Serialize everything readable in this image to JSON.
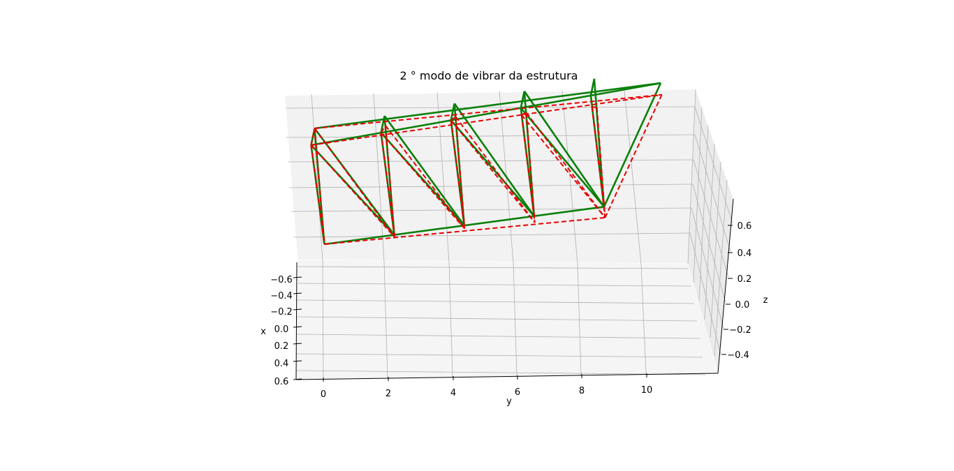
{
  "chart_data": {
    "type": "3d-line",
    "title": "2 ° modo de vibrar da estrutura",
    "xlabel": "x",
    "ylabel": "y",
    "zlabel": "z",
    "x_ticks": [
      "−0.6",
      "−0.4",
      "−0.2",
      "0.0",
      "0.2",
      "0.4",
      "0.6"
    ],
    "y_ticks": [
      "0",
      "2",
      "4",
      "6",
      "8",
      "10"
    ],
    "z_ticks": [
      "0.6",
      "0.4",
      "0.2",
      "0.0",
      "−0.2",
      "−0.4"
    ],
    "grid": true,
    "series": [
      {
        "color": "#0a800a",
        "linestyle": "solid",
        "segments": [
          [
            [
              -0.5,
              0.0,
              0.6
            ],
            [
              0.5,
              0.0,
              0.6
            ]
          ],
          [
            [
              -0.5,
              0.0,
              0.6
            ],
            [
              0.0,
              0.0,
              -0.5
            ]
          ],
          [
            [
              0.5,
              0.0,
              0.6
            ],
            [
              0.0,
              0.0,
              -0.5
            ]
          ],
          [
            [
              -0.5,
              2.2,
              0.6
            ],
            [
              0.5,
              2.2,
              0.6
            ]
          ],
          [
            [
              -0.5,
              2.2,
              0.6
            ],
            [
              0.0,
              2.2,
              -0.5
            ]
          ],
          [
            [
              0.5,
              2.2,
              0.6
            ],
            [
              0.0,
              2.2,
              -0.5
            ]
          ],
          [
            [
              -0.5,
              4.4,
              0.6
            ],
            [
              0.5,
              4.4,
              0.6
            ]
          ],
          [
            [
              -0.5,
              4.4,
              0.6
            ],
            [
              0.0,
              4.4,
              -0.5
            ]
          ],
          [
            [
              0.5,
              4.4,
              0.6
            ],
            [
              0.0,
              4.4,
              -0.5
            ]
          ],
          [
            [
              -0.5,
              6.6,
              0.6
            ],
            [
              0.5,
              6.6,
              0.6
            ]
          ],
          [
            [
              -0.5,
              6.6,
              0.6
            ],
            [
              0.0,
              6.6,
              -0.5
            ]
          ],
          [
            [
              0.5,
              6.6,
              0.6
            ],
            [
              0.0,
              6.6,
              -0.5
            ]
          ],
          [
            [
              -0.5,
              8.8,
              0.6
            ],
            [
              0.5,
              8.8,
              0.6
            ]
          ],
          [
            [
              -0.5,
              8.8,
              0.6
            ],
            [
              0.0,
              8.8,
              -0.5
            ]
          ],
          [
            [
              0.5,
              8.8,
              0.6
            ],
            [
              0.0,
              8.8,
              -0.5
            ]
          ],
          [
            [
              -0.5,
              0.0,
              0.6
            ],
            [
              -0.5,
              11.0,
              0.6
            ]
          ],
          [
            [
              0.5,
              0.0,
              0.6
            ],
            [
              -0.5,
              11.0,
              0.6
            ]
          ],
          [
            [
              0.0,
              0.0,
              -0.5
            ],
            [
              0.0,
              8.8,
              -0.5
            ]
          ],
          [
            [
              0.0,
              8.8,
              -0.5
            ],
            [
              -0.5,
              11.0,
              0.6
            ]
          ],
          [
            [
              -0.5,
              0.0,
              0.6
            ],
            [
              0.0,
              2.2,
              -0.5
            ]
          ],
          [
            [
              0.5,
              0.0,
              0.6
            ],
            [
              0.0,
              2.2,
              -0.5
            ]
          ],
          [
            [
              -0.5,
              2.2,
              0.6
            ],
            [
              0.0,
              4.4,
              -0.5
            ]
          ],
          [
            [
              0.5,
              2.2,
              0.6
            ],
            [
              0.0,
              4.4,
              -0.5
            ]
          ],
          [
            [
              -0.5,
              4.4,
              0.6
            ],
            [
              0.0,
              6.6,
              -0.5
            ]
          ],
          [
            [
              0.5,
              4.4,
              0.6
            ],
            [
              0.0,
              6.6,
              -0.5
            ]
          ],
          [
            [
              -0.5,
              6.6,
              0.6
            ],
            [
              0.0,
              8.8,
              -0.5
            ]
          ],
          [
            [
              0.5,
              6.6,
              0.6
            ],
            [
              0.0,
              8.8,
              -0.5
            ]
          ]
        ]
      },
      {
        "color": "#e60000",
        "linestyle": "dashed",
        "segments": [
          [
            [
              -0.5,
              0.0,
              0.6
            ],
            [
              0.5,
              0.0,
              0.6
            ]
          ],
          [
            [
              -0.5,
              0.0,
              0.6
            ],
            [
              0.0,
              0.0,
              -0.5
            ]
          ],
          [
            [
              0.5,
              0.0,
              0.6
            ],
            [
              0.0,
              0.0,
              -0.5
            ]
          ],
          [
            [
              -0.5,
              2.2,
              0.6
            ],
            [
              0.5,
              2.2,
              0.51
            ]
          ],
          [
            [
              -0.5,
              2.2,
              0.6
            ],
            [
              0.0,
              2.2,
              -0.52
            ]
          ],
          [
            [
              0.5,
              2.2,
              0.51
            ],
            [
              0.0,
              2.2,
              -0.52
            ]
          ],
          [
            [
              -0.5,
              4.4,
              0.6
            ],
            [
              0.5,
              4.4,
              0.48
            ]
          ],
          [
            [
              -0.5,
              4.4,
              0.6
            ],
            [
              0.0,
              4.4,
              -0.53
            ]
          ],
          [
            [
              0.5,
              4.4,
              0.48
            ],
            [
              0.0,
              4.4,
              -0.53
            ]
          ],
          [
            [
              -0.5,
              6.6,
              0.53
            ],
            [
              0.5,
              6.6,
              0.41
            ]
          ],
          [
            [
              -0.5,
              6.6,
              0.53
            ],
            [
              0.0,
              6.6,
              -0.56
            ]
          ],
          [
            [
              0.5,
              6.6,
              0.41
            ],
            [
              0.0,
              6.6,
              -0.56
            ]
          ],
          [
            [
              -0.5,
              8.8,
              0.49
            ],
            [
              0.5,
              8.8,
              0.35
            ]
          ],
          [
            [
              -0.5,
              8.8,
              0.49
            ],
            [
              0.0,
              8.8,
              -0.6
            ]
          ],
          [
            [
              0.5,
              8.8,
              0.35
            ],
            [
              0.0,
              8.8,
              -0.6
            ]
          ],
          [
            [
              -0.5,
              0.0,
              0.6
            ],
            [
              -0.5,
              11.0,
              0.49
            ]
          ],
          [
            [
              0.5,
              0.0,
              0.6
            ],
            [
              -0.5,
              11.0,
              0.49
            ]
          ],
          [
            [
              0.0,
              0.0,
              -0.5
            ],
            [
              0.0,
              8.8,
              -0.6
            ]
          ],
          [
            [
              0.0,
              8.8,
              -0.6
            ],
            [
              -0.5,
              11.0,
              0.49
            ]
          ],
          [
            [
              -0.5,
              0.0,
              0.6
            ],
            [
              0.0,
              2.2,
              -0.52
            ]
          ],
          [
            [
              0.5,
              0.0,
              0.6
            ],
            [
              0.0,
              2.2,
              -0.52
            ]
          ],
          [
            [
              -0.5,
              2.2,
              0.6
            ],
            [
              0.0,
              4.4,
              -0.53
            ]
          ],
          [
            [
              0.5,
              2.2,
              0.51
            ],
            [
              0.0,
              4.4,
              -0.53
            ]
          ],
          [
            [
              -0.5,
              4.4,
              0.6
            ],
            [
              0.0,
              6.6,
              -0.56
            ]
          ],
          [
            [
              0.5,
              4.4,
              0.48
            ],
            [
              0.0,
              6.6,
              -0.56
            ]
          ],
          [
            [
              -0.5,
              6.6,
              0.53
            ],
            [
              0.0,
              8.8,
              -0.6
            ]
          ],
          [
            [
              0.5,
              6.6,
              0.41
            ],
            [
              0.0,
              8.8,
              -0.6
            ]
          ]
        ]
      }
    ]
  }
}
